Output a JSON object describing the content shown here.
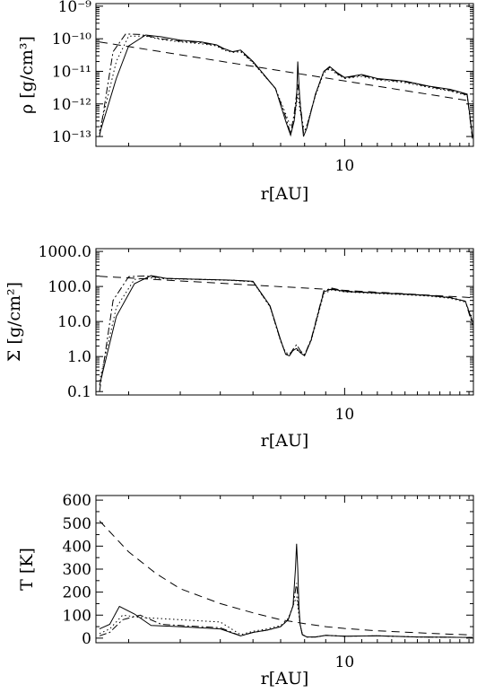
{
  "chart_data": [
    {
      "type": "line",
      "ylabel": "ρ [g/cm³]",
      "xlabel": "r[AU]",
      "xscale": "log",
      "yscale": "log",
      "xlim": [
        2.5,
        20.5
      ],
      "ylim": [
        5e-14,
        1.2e-09
      ],
      "xticklabels": [
        "10"
      ],
      "yticklabels": [
        "10⁻¹³",
        "10⁻¹²",
        "10⁻¹¹",
        "10⁻¹⁰",
        "10⁻⁹"
      ],
      "series": [
        {
          "style": "solid",
          "x": [
            2.55,
            2.8,
            3.0,
            3.3,
            3.6,
            4.0,
            4.5,
            4.9,
            5.1,
            5.35,
            5.6,
            6.0,
            6.8,
            7.2,
            7.4,
            7.55,
            7.65,
            7.7,
            7.75,
            7.8,
            7.95,
            8.1,
            8.5,
            8.9,
            9.2,
            9.6,
            10.0,
            11.0,
            12.0,
            14.0,
            16.0,
            18.0,
            19.8,
            20.4
          ],
          "y": [
            1.2e-13,
            6e-12,
            6e-11,
            1.3e-10,
            1.15e-10,
            9e-11,
            8e-11,
            6.5e-11,
            5e-11,
            4e-11,
            4.5e-11,
            2e-11,
            3e-12,
            3e-13,
            1.1e-13,
            3e-13,
            1.5e-12,
            2e-11,
            4e-12,
            1e-12,
            1e-13,
            1.8e-13,
            2e-12,
            1e-11,
            1.4e-11,
            9e-12,
            6.5e-12,
            8e-12,
            6e-12,
            5e-12,
            3.5e-12,
            2.8e-12,
            2e-12,
            1e-13
          ]
        },
        {
          "style": "dashed",
          "x": [
            2.55,
            20.4
          ],
          "y": [
            8e-11,
            1.2e-12
          ]
        },
        {
          "style": "dotted",
          "x": [
            2.55,
            2.8,
            3.0,
            3.3,
            3.6,
            4.0,
            4.5,
            4.9,
            5.1,
            5.35,
            5.6,
            6.0,
            6.8,
            7.2,
            7.4,
            7.55,
            7.7,
            7.8,
            7.95,
            8.1,
            8.5,
            8.9,
            9.2,
            9.6,
            10.0,
            11.0,
            12.0,
            14.0,
            16.0,
            18.0,
            19.8,
            20.4
          ],
          "y": [
            1.5e-13,
            2e-11,
            1.2e-10,
            1.2e-10,
            9.5e-11,
            8e-11,
            7e-11,
            6e-11,
            4.5e-11,
            3.8e-11,
            4e-11,
            1.8e-11,
            3e-12,
            5e-13,
            2e-13,
            3e-13,
            2e-12,
            6e-13,
            2e-13,
            2.2e-13,
            1.8e-12,
            9e-12,
            1.2e-11,
            8e-12,
            6e-12,
            7e-12,
            5.5e-12,
            4.5e-12,
            3.2e-12,
            2.5e-12,
            1.8e-12,
            1e-13
          ]
        },
        {
          "style": "dashdot",
          "x": [
            2.55,
            2.75,
            2.95,
            3.2,
            3.6,
            4.0,
            4.5,
            4.9,
            5.1,
            5.35,
            5.6,
            6.0,
            6.8,
            7.2,
            7.4,
            7.55,
            7.7,
            7.8,
            7.95,
            8.1,
            8.5,
            8.9,
            9.2,
            9.6,
            10.0,
            11.0,
            12.0,
            14.0,
            16.0,
            18.0,
            19.8,
            20.4
          ],
          "y": [
            1e-13,
            4e-11,
            1.4e-10,
            1.35e-10,
            1e-10,
            8.5e-11,
            7.5e-11,
            6.3e-11,
            4.8e-11,
            4e-11,
            4.3e-11,
            1.9e-11,
            3e-12,
            4e-13,
            1.2e-13,
            5e-13,
            4e-12,
            1.2e-12,
            1.3e-13,
            2e-13,
            2e-12,
            1e-11,
            1.3e-11,
            8.5e-12,
            6.3e-12,
            7.5e-12,
            5.8e-12,
            4.8e-12,
            3.4e-12,
            2.6e-12,
            1.9e-12,
            8e-14
          ]
        }
      ]
    },
    {
      "type": "line",
      "ylabel": "Σ [g/cm²]",
      "xlabel": "r[AU]",
      "xscale": "log",
      "yscale": "log",
      "xlim": [
        2.5,
        20.5
      ],
      "ylim": [
        0.08,
        1200
      ],
      "xticklabels": [
        "10"
      ],
      "yticklabels": [
        "0.1",
        "1.0",
        "10.0",
        "100.0",
        "1000.0"
      ],
      "series": [
        {
          "style": "solid",
          "x": [
            2.55,
            2.8,
            3.1,
            3.4,
            3.7,
            4.5,
            5.4,
            6.0,
            6.6,
            7.0,
            7.2,
            7.35,
            7.5,
            7.65,
            7.8,
            8.0,
            8.3,
            8.9,
            9.3,
            10.0,
            12.0,
            14.0,
            16.0,
            18.0,
            19.6,
            20.4
          ],
          "y": [
            0.15,
            14,
            120,
            205,
            170,
            160,
            150,
            140,
            28,
            3,
            1.15,
            1.05,
            1.5,
            1.7,
            1.3,
            1.05,
            3,
            70,
            85,
            72,
            65,
            60,
            55,
            48,
            38,
            10
          ]
        },
        {
          "style": "dashed",
          "x": [
            2.55,
            20.4
          ],
          "y": [
            195,
            48
          ]
        },
        {
          "style": "dotted",
          "x": [
            2.55,
            2.8,
            3.1,
            3.4,
            3.7,
            4.5,
            5.4,
            6.0,
            6.6,
            7.0,
            7.2,
            7.35,
            7.5,
            7.65,
            7.8,
            8.0,
            8.3,
            8.9,
            9.3,
            10.0,
            12.0,
            14.0,
            16.0,
            18.0,
            19.6,
            20.4
          ],
          "y": [
            0.2,
            25,
            160,
            175,
            165,
            158,
            148,
            135,
            26,
            2.7,
            1.3,
            1.2,
            1.5,
            1.55,
            1.35,
            1.15,
            2.8,
            62,
            80,
            70,
            63,
            58,
            53,
            46,
            36,
            12
          ]
        },
        {
          "style": "dashdot",
          "x": [
            2.55,
            2.75,
            3.0,
            3.3,
            3.7,
            4.5,
            5.4,
            6.0,
            6.6,
            7.0,
            7.2,
            7.35,
            7.5,
            7.65,
            7.8,
            8.0,
            8.3,
            8.9,
            9.3,
            10.0,
            12.0,
            14.0,
            16.0,
            18.0,
            19.6,
            20.4
          ],
          "y": [
            0.1,
            40,
            190,
            200,
            170,
            160,
            150,
            138,
            27,
            2.8,
            1.2,
            1.1,
            1.6,
            2.2,
            1.5,
            1.1,
            3.2,
            75,
            90,
            74,
            66,
            61,
            56,
            49,
            38,
            8
          ]
        }
      ]
    },
    {
      "type": "line",
      "ylabel": "T [K]",
      "xlabel": "r[AU]",
      "xscale": "log",
      "yscale": "linear",
      "xlim": [
        2.5,
        20.5
      ],
      "ylim": [
        -20,
        620
      ],
      "xticklabels": [
        "10"
      ],
      "yticklabels": [
        "0",
        "100",
        "200",
        "300",
        "400",
        "500",
        "600"
      ],
      "series": [
        {
          "style": "solid",
          "x": [
            2.55,
            2.7,
            2.85,
            3.1,
            3.4,
            4.0,
            5.0,
            5.6,
            6.0,
            6.5,
            7.0,
            7.3,
            7.5,
            7.6,
            7.65,
            7.7,
            7.75,
            7.8,
            7.9,
            8.1,
            8.5,
            9.0,
            10.0,
            12.0,
            15.0,
            18.0,
            20.4
          ],
          "y": [
            40,
            60,
            138,
            105,
            55,
            50,
            40,
            10,
            25,
            35,
            50,
            80,
            140,
            300,
            410,
            300,
            140,
            60,
            15,
            5,
            5,
            12,
            8,
            10,
            5,
            4,
            3
          ]
        },
        {
          "style": "dashed",
          "x": [
            2.55,
            3.0,
            3.5,
            4.0,
            5.0,
            6.0,
            7.0,
            8.0,
            9.0,
            10.0,
            12.0,
            14.0,
            16.0,
            18.0,
            20.4
          ],
          "y": [
            510,
            375,
            280,
            215,
            150,
            110,
            80,
            63,
            50,
            42,
            32,
            26,
            21,
            17,
            14
          ]
        },
        {
          "style": "dotted",
          "x": [
            2.55,
            2.7,
            2.9,
            3.2,
            3.6,
            4.0,
            5.0,
            5.6,
            6.0,
            6.5,
            7.0,
            7.3,
            7.5,
            7.65,
            7.8,
            7.9,
            8.1,
            8.5,
            9.0,
            10.0,
            12.0,
            15.0,
            18.0,
            20.4
          ],
          "y": [
            20,
            40,
            100,
            90,
            85,
            80,
            70,
            15,
            30,
            40,
            55,
            85,
            140,
            180,
            60,
            15,
            5,
            5,
            12,
            8,
            10,
            5,
            4,
            3
          ]
        },
        {
          "style": "dashdot",
          "x": [
            2.55,
            2.7,
            2.9,
            3.2,
            3.6,
            4.0,
            5.0,
            5.6,
            6.0,
            6.5,
            7.0,
            7.3,
            7.5,
            7.65,
            7.8,
            7.9,
            8.1,
            8.5,
            9.0,
            10.0,
            12.0,
            15.0,
            18.0,
            20.4
          ],
          "y": [
            10,
            25,
            80,
            100,
            60,
            55,
            45,
            10,
            25,
            35,
            50,
            80,
            140,
            240,
            60,
            15,
            5,
            5,
            12,
            8,
            10,
            5,
            4,
            3
          ]
        }
      ]
    }
  ]
}
